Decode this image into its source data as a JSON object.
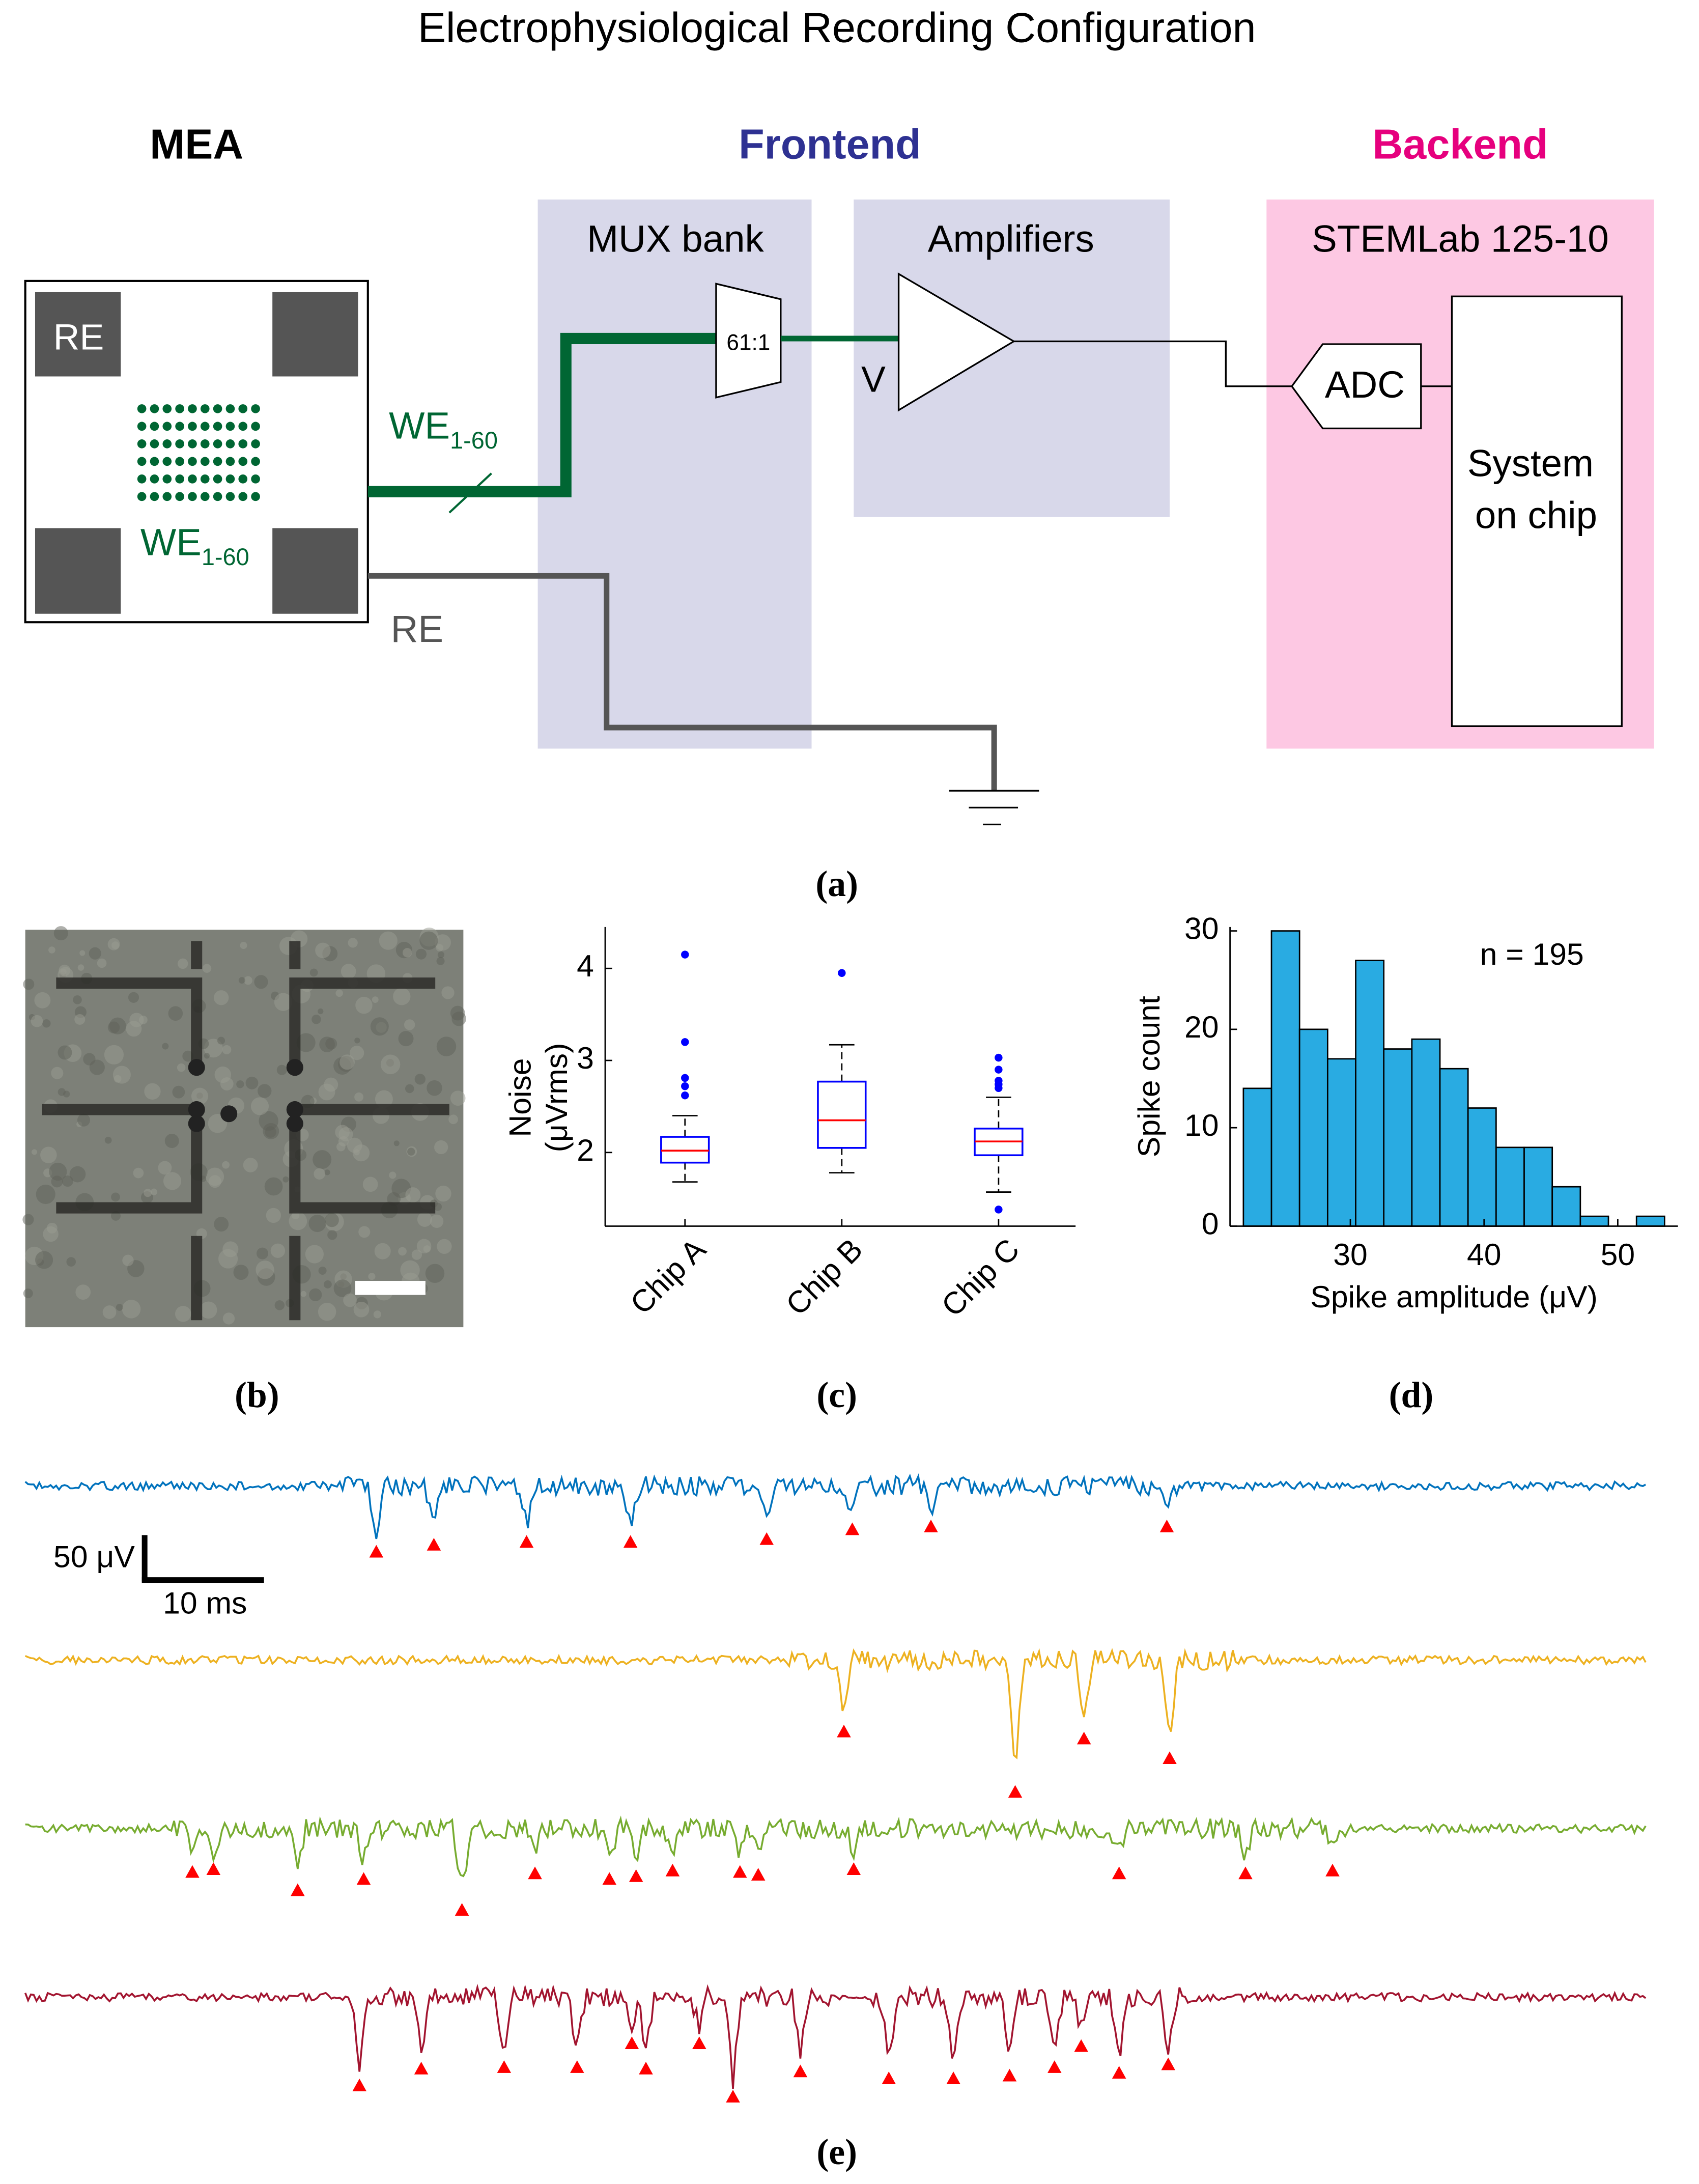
{
  "title": "Electrophysiological Recording Configuration",
  "diagram": {
    "sections": {
      "mea": "MEA",
      "frontend": "Frontend",
      "backend": "Backend"
    },
    "labels": {
      "mux": "MUX bank",
      "amps": "Amplifiers",
      "stemlab": "STEMLab 125-10",
      "ratio": "61:1",
      "v": "V",
      "adc": "ADC",
      "soc1": "System",
      "soc2": "on chip",
      "re_pad": "RE",
      "we": "WE",
      "we_sub": "1-60",
      "re": "RE"
    }
  },
  "panel_labels": {
    "a": "(a)",
    "b": "(b)",
    "c": "(c)",
    "d": "(d)",
    "e": "(e)"
  },
  "scale_bar": {
    "y": "50 μV",
    "x": "10 ms"
  },
  "chart_data": [
    {
      "type": "boxplot",
      "ylabel": [
        "Noise",
        "(μVrms)"
      ],
      "categories": [
        "Chip A",
        "Chip B",
        "Chip C"
      ],
      "q1": [
        1.89,
        2.05,
        1.97
      ],
      "median": [
        2.02,
        2.35,
        2.12
      ],
      "q3": [
        2.17,
        2.77,
        2.26
      ],
      "whisker_low": [
        1.68,
        1.78,
        1.57
      ],
      "whisker_high": [
        2.4,
        3.17,
        2.6
      ],
      "outliers": [
        [
          2.62,
          2.72,
          2.81,
          3.2,
          4.15
        ],
        [
          3.95
        ],
        [
          1.38,
          2.7,
          2.74,
          2.78,
          2.9,
          3.03
        ]
      ],
      "color": "#0000ff",
      "median_color": "#ff0000",
      "ylim": [
        1.2,
        4.45
      ],
      "yticks": [
        2,
        3,
        4
      ]
    },
    {
      "type": "histogram",
      "xlabel": "Spike amplitude (μV)",
      "ylabel": "Spike count",
      "annotation": "n  = 195",
      "bins": [
        22,
        24.1,
        26.2,
        28.3,
        30.4,
        32.5,
        34.6,
        36.7,
        38.8,
        40.9,
        43,
        45.1,
        47.2,
        49.3,
        51.4,
        53.5
      ],
      "counts": [
        14,
        30,
        20,
        17,
        27,
        18,
        19,
        16,
        12,
        8,
        8,
        4,
        1,
        0,
        1
      ],
      "color": "#29abe2",
      "edgecolor": "#000000",
      "xlim": [
        21,
        54.5
      ],
      "ylim": [
        0,
        30.4
      ],
      "xticks": [
        30,
        40,
        50
      ],
      "yticks": [
        0,
        10,
        20,
        30
      ]
    }
  ]
}
